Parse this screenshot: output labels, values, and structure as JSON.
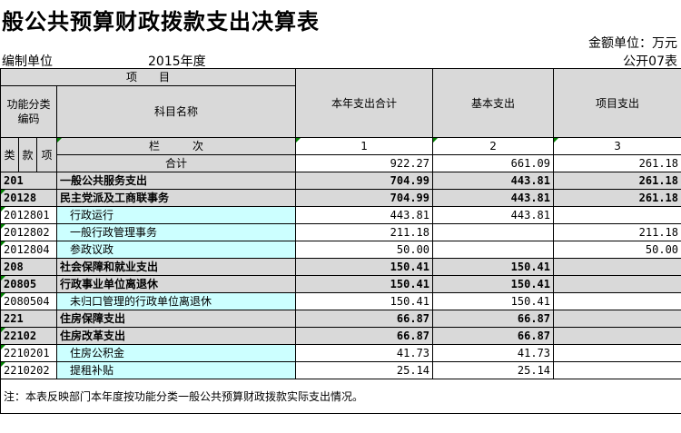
{
  "title": "般公共预算财政拨款支出决算表",
  "unit": "金额单位：万元",
  "org_label": "编制单位",
  "year": "2015年度",
  "table_no": "公开07表",
  "header": {
    "item": "项　　目",
    "func_code": "功能分类编码",
    "subject_name": "科目名称",
    "col_total": "本年支出合计",
    "col_basic": "基本支出",
    "col_project": "项目支出",
    "lanci": "栏　　　次",
    "lei": "类",
    "kuan": "款",
    "xiang": "项",
    "n1": "1",
    "n2": "2",
    "n3": "3"
  },
  "total": {
    "label": "合计",
    "total": "922.27",
    "basic": "661.09",
    "project": "261.18"
  },
  "rows": [
    {
      "code": "201",
      "name": "一般公共服务支出",
      "total": "704.99",
      "basic": "443.81",
      "project": "261.18",
      "level": 1
    },
    {
      "code": "20128",
      "name": "民主党派及工商联事务",
      "total": "704.99",
      "basic": "443.81",
      "project": "261.18",
      "level": 2
    },
    {
      "code": "2012801",
      "name": "行政运行",
      "total": "443.81",
      "basic": "443.81",
      "project": "",
      "level": 3
    },
    {
      "code": "2012802",
      "name": "一般行政管理事务",
      "total": "211.18",
      "basic": "",
      "project": "211.18",
      "level": 3
    },
    {
      "code": "2012804",
      "name": "参政议政",
      "total": "50.00",
      "basic": "",
      "project": "50.00",
      "level": 3
    },
    {
      "code": "208",
      "name": "社会保障和就业支出",
      "total": "150.41",
      "basic": "150.41",
      "project": "",
      "level": 1
    },
    {
      "code": "20805",
      "name": "行政事业单位离退休",
      "total": "150.41",
      "basic": "150.41",
      "project": "",
      "level": 2
    },
    {
      "code": "2080504",
      "name": "未归口管理的行政单位离退休",
      "total": "150.41",
      "basic": "150.41",
      "project": "",
      "level": 3
    },
    {
      "code": "221",
      "name": "住房保障支出",
      "total": "66.87",
      "basic": "66.87",
      "project": "",
      "level": 1
    },
    {
      "code": "22102",
      "name": "住房改革支出",
      "total": "66.87",
      "basic": "66.87",
      "project": "",
      "level": 2
    },
    {
      "code": "2210201",
      "name": "住房公积金",
      "total": "41.73",
      "basic": "41.73",
      "project": "",
      "level": 3
    },
    {
      "code": "2210202",
      "name": "提租补贴",
      "total": "25.14",
      "basic": "25.14",
      "project": "",
      "level": 3
    }
  ],
  "note": "注：本表反映部门本年度按功能分类一般公共预算财政拨款实际支出情况。"
}
